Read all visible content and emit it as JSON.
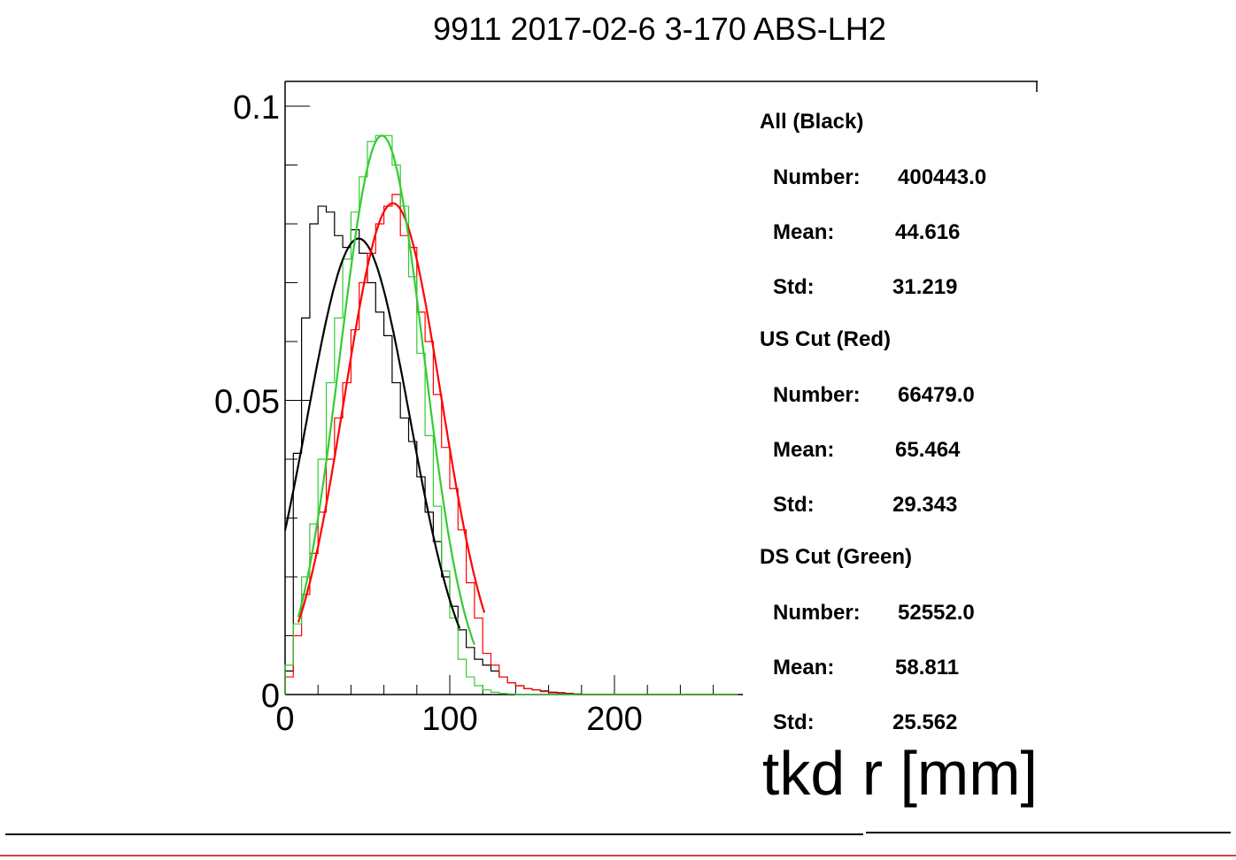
{
  "chart_data": {
    "type": "line",
    "title": "9911 2017-02-6 3-170 ABS-LH2",
    "xlabel": "tkd r [mm]",
    "ylabel": "",
    "xlim": [
      0,
      278
    ],
    "ylim": [
      0,
      0.1
    ],
    "xticks": [
      0,
      100,
      200
    ],
    "yticks": [
      0,
      0.05,
      0.1
    ],
    "ytick_labels": [
      "0",
      "0.05",
      "0.1"
    ],
    "xtick_labels": [
      "0",
      "100",
      "200"
    ],
    "bin_width": 10,
    "colors": {
      "all": "#000000",
      "us": "#ff0000",
      "ds": "#33cc33"
    },
    "series": [
      {
        "name": "All (Black)",
        "kind": "histogram",
        "bin_start": 0,
        "bin_width": 5,
        "values": [
          0.004,
          0.041,
          0.064,
          0.08,
          0.083,
          0.082,
          0.078,
          0.076,
          0.079,
          0.075,
          0.07,
          0.065,
          0.061,
          0.053,
          0.047,
          0.043,
          0.037,
          0.031,
          0.026,
          0.02,
          0.015,
          0.011,
          0.008,
          0.006,
          0.005,
          0.004,
          0.003,
          0.002,
          0.0015,
          0.001,
          0.0008,
          0.0006,
          0.0004,
          0.0003,
          0.0002,
          0.0001,
          0,
          0,
          0,
          0,
          0,
          0,
          0,
          0,
          0,
          0,
          0,
          0,
          0,
          0,
          0,
          0,
          0,
          0,
          0
        ]
      },
      {
        "name": "US Cut (Red)",
        "kind": "histogram",
        "bin_start": 0,
        "bin_width": 5,
        "values": [
          0.003,
          0.01,
          0.017,
          0.024,
          0.031,
          0.04,
          0.047,
          0.053,
          0.062,
          0.07,
          0.075,
          0.08,
          0.083,
          0.085,
          0.078,
          0.076,
          0.065,
          0.06,
          0.051,
          0.042,
          0.035,
          0.028,
          0.019,
          0.013,
          0.007,
          0.005,
          0.003,
          0.002,
          0.0015,
          0.001,
          0.0008,
          0.0005,
          0.0003,
          0.0002,
          0.0001,
          0,
          0,
          0,
          0,
          0,
          0,
          0,
          0,
          0,
          0,
          0,
          0,
          0,
          0,
          0,
          0,
          0,
          0,
          0,
          0
        ]
      },
      {
        "name": "DS Cut (Green)",
        "kind": "histogram",
        "bin_start": 0,
        "bin_width": 5,
        "values": [
          0.005,
          0.012,
          0.02,
          0.029,
          0.04,
          0.053,
          0.064,
          0.074,
          0.082,
          0.088,
          0.094,
          0.095,
          0.095,
          0.09,
          0.083,
          0.071,
          0.058,
          0.044,
          0.032,
          0.021,
          0.013,
          0.006,
          0.003,
          0.0015,
          0.0008,
          0.0004,
          0.0002,
          0.0001,
          0,
          0,
          0,
          0,
          0,
          0,
          0,
          0,
          0,
          0,
          0,
          0,
          0,
          0,
          0,
          0,
          0,
          0,
          0,
          0,
          0,
          0,
          0,
          0,
          0,
          0,
          0
        ]
      }
    ],
    "fits": [
      {
        "name": "All (Black)",
        "color": "#000000",
        "mean": 44.616,
        "sigma": 31.219,
        "amplitude": 0.0775,
        "x_range": [
          0,
          106
        ]
      },
      {
        "name": "US Cut (Red)",
        "color": "#ff0000",
        "mean": 65.464,
        "sigma": 29.343,
        "amplitude": 0.0835,
        "x_range": [
          8,
          121
        ]
      },
      {
        "name": "DS Cut (Green)",
        "color": "#33cc33",
        "mean": 58.811,
        "sigma": 25.562,
        "amplitude": 0.095,
        "x_range": [
          8,
          115
        ]
      }
    ],
    "stats": [
      {
        "header": "All (Black)",
        "number_label": "Number:",
        "number": "400443.0",
        "mean_label": "Mean:",
        "mean": "44.616",
        "std_label": "Std:",
        "std": "31.219"
      },
      {
        "header": "US Cut (Red)",
        "number_label": "Number:",
        "number": "66479.0",
        "mean_label": "Mean:",
        "mean": "65.464",
        "std_label": "Std:",
        "std": "29.343"
      },
      {
        "header": "DS Cut (Green)",
        "number_label": "Number:",
        "number": "52552.0",
        "mean_label": "Mean:",
        "mean": "58.811",
        "std_label": "Std:",
        "std": "25.562"
      }
    ]
  }
}
